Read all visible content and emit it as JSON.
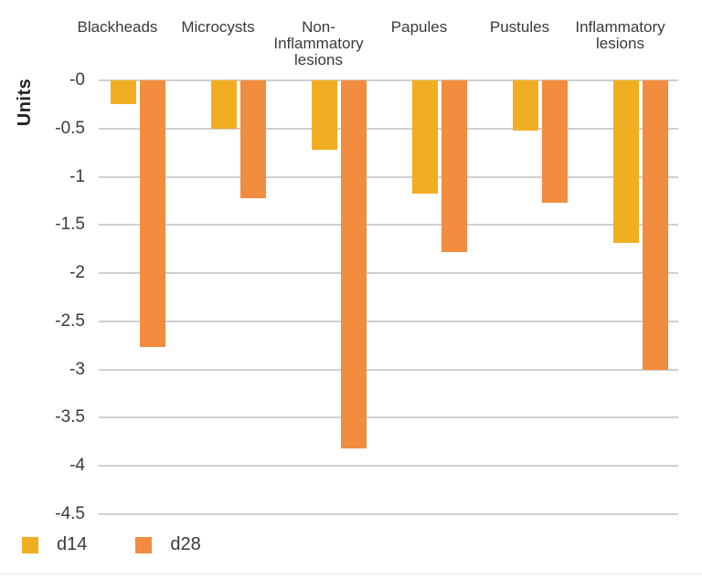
{
  "chart_data": {
    "type": "bar",
    "title": "",
    "xlabel": "",
    "ylabel": "Units",
    "ylim": [
      -4.5,
      0
    ],
    "grid": true,
    "legend_position": "bottom-left",
    "y_ticks": [
      "-0",
      "-0.5",
      "-1",
      "-1.5",
      "-2",
      "-2.5",
      "-3",
      "-3.5",
      "-4",
      "-4.5"
    ],
    "y_tick_values": [
      0,
      -0.5,
      -1,
      -1.5,
      -2,
      -2.5,
      -3,
      -3.5,
      -4,
      -4.5
    ],
    "categories": [
      {
        "label": "Blackheads",
        "lines": [
          "Blackheads"
        ]
      },
      {
        "label": "Microcysts",
        "lines": [
          "Microcysts"
        ]
      },
      {
        "label": "Non-Inflammatory lesions",
        "lines": [
          "Non-",
          "Inflammatory",
          "lesions"
        ]
      },
      {
        "label": "Papules",
        "lines": [
          "Papules"
        ]
      },
      {
        "label": "Pustules",
        "lines": [
          "Pustules"
        ]
      },
      {
        "label": "Inflammatory lesions",
        "lines": [
          "Inflammatory",
          "lesions"
        ]
      }
    ],
    "series": [
      {
        "name": "d14",
        "color": "#F2AE22",
        "values": [
          -0.25,
          -0.5,
          -0.72,
          -1.18,
          -0.52,
          -1.69
        ]
      },
      {
        "name": "d28",
        "color": "#F28C3E",
        "values": [
          -2.77,
          -1.22,
          -3.82,
          -1.78,
          -1.27,
          -3.0
        ]
      }
    ],
    "colors": {
      "gridline": "#CFCFCF",
      "text": "#3A3A3A",
      "axis_title": "#232323",
      "background": "#FFFFFF"
    }
  }
}
